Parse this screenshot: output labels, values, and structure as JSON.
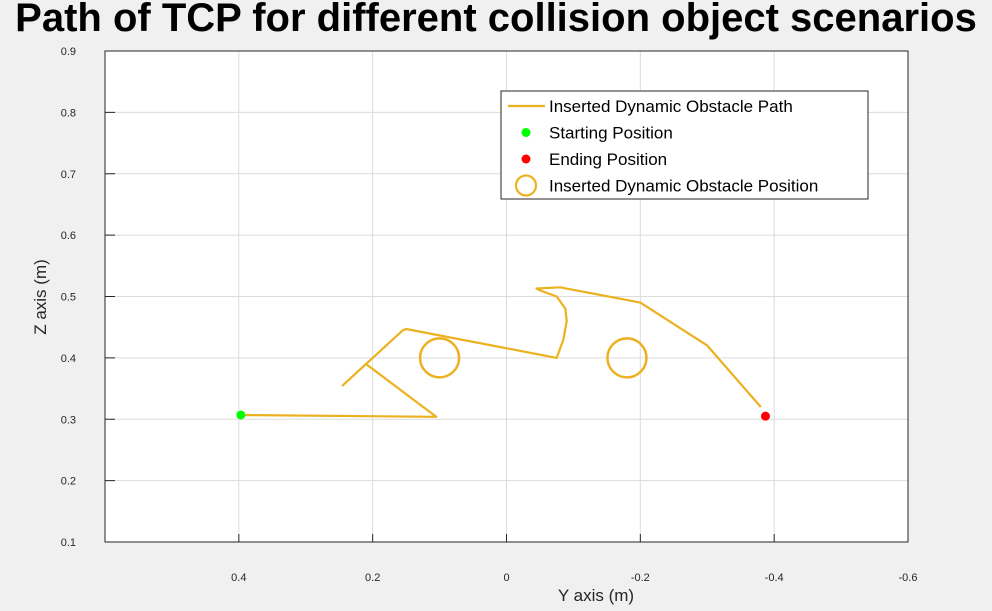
{
  "chart_data": {
    "type": "line",
    "title": "Path of TCP for different collision object scenarios",
    "xlabel": "Y axis (m)",
    "ylabel": "Z axis (m)",
    "xlim": [
      0.6,
      -0.6
    ],
    "ylim": [
      0.1,
      0.9
    ],
    "x_reversed": true,
    "grid": true,
    "legend_position": "top-right",
    "xticks": [
      0.4,
      0.2,
      0,
      -0.2,
      -0.4,
      -0.6
    ],
    "xtick_labels": [
      "0.4",
      "0.2",
      "0",
      "-0.2",
      "-0.4",
      "-0.6"
    ],
    "yticks": [
      0.1,
      0.2,
      0.3,
      0.4,
      0.5,
      0.6,
      0.7,
      0.8,
      0.9
    ],
    "ytick_labels": [
      "0.1",
      "0.2",
      "0.3",
      "0.4",
      "0.5",
      "0.6",
      "0.7",
      "0.8",
      "0.9"
    ],
    "series": [
      {
        "name": "Inserted Dynamic Obstacle Path",
        "style": "line",
        "color": "#EDB120",
        "x": [
          0.397,
          0.105,
          0.21,
          0.245,
          0.155,
          0.15,
          -0.075,
          -0.085,
          -0.09,
          -0.088,
          -0.075,
          -0.05,
          -0.045,
          -0.08,
          -0.2,
          -0.3,
          -0.38
        ],
        "y": [
          0.307,
          0.304,
          0.39,
          0.355,
          0.445,
          0.447,
          0.4,
          0.43,
          0.46,
          0.48,
          0.5,
          0.51,
          0.513,
          0.515,
          0.49,
          0.42,
          0.32
        ]
      },
      {
        "name": "Starting Position",
        "style": "marker",
        "color": "#00FF00",
        "x": [
          0.397
        ],
        "y": [
          0.307
        ]
      },
      {
        "name": "Ending Position",
        "style": "marker",
        "color": "#FF0000",
        "x": [
          -0.387
        ],
        "y": [
          0.305
        ]
      },
      {
        "name": "Inserted Dynamic Obstacle Position",
        "style": "circle",
        "color": "#EDB120",
        "x": [
          0.1,
          -0.18
        ],
        "y": [
          0.4,
          0.4
        ]
      }
    ]
  }
}
